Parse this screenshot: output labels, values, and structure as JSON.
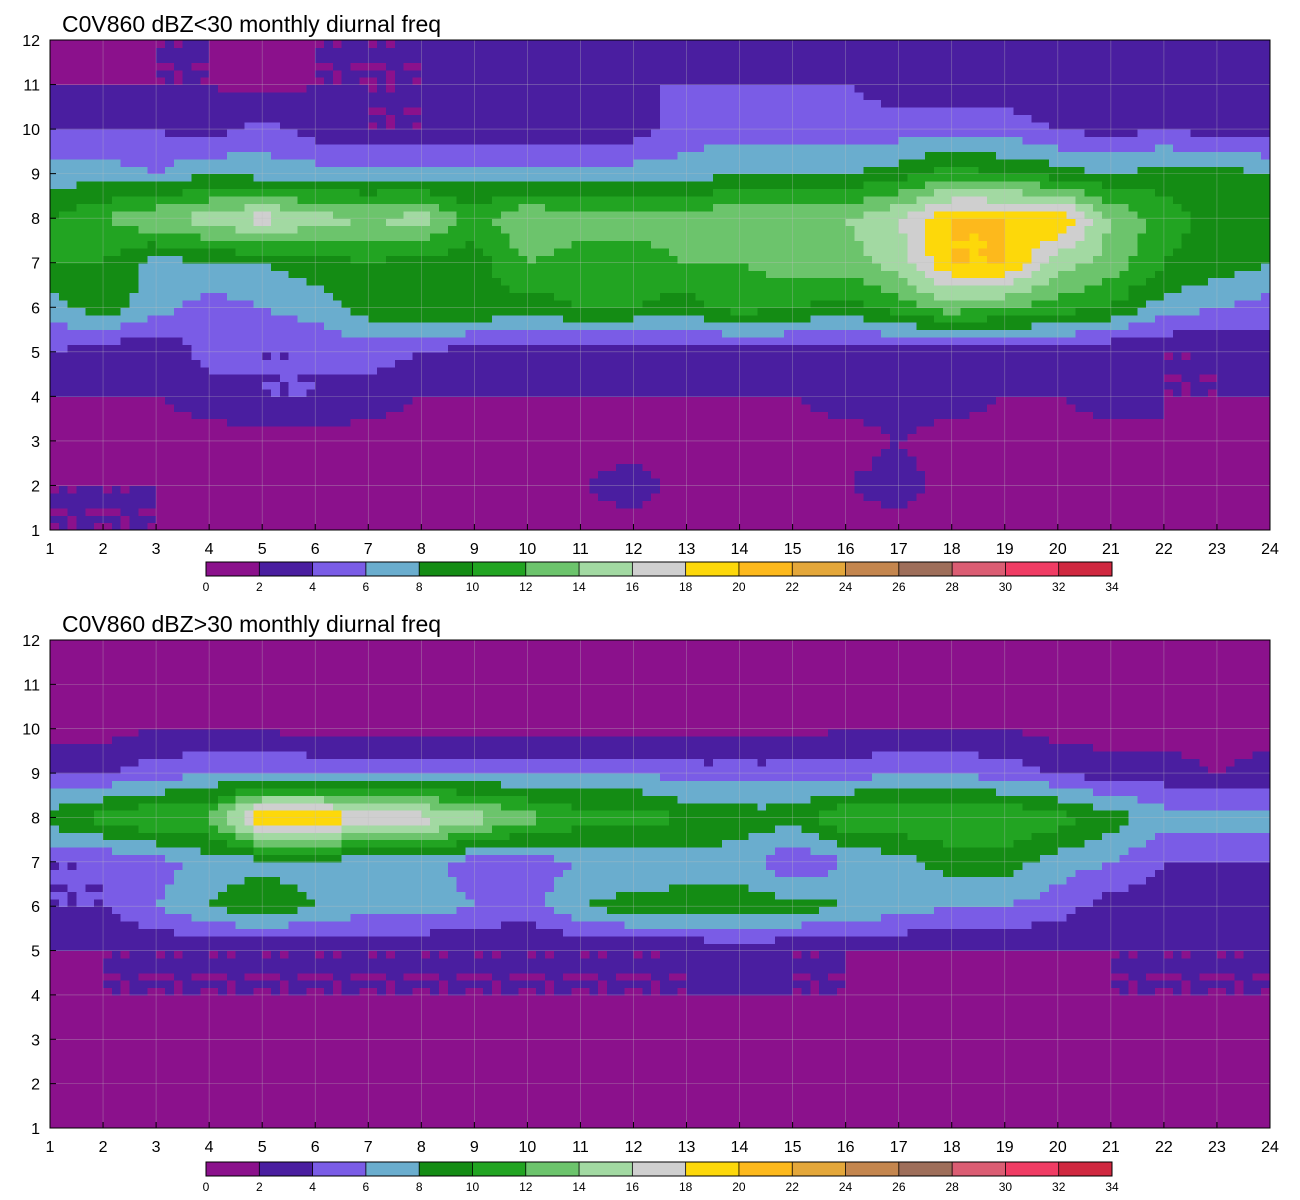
{
  "colors": {
    "levels": [
      "#8B118C",
      "#4A1EA0",
      "#7A5CE6",
      "#6AADCE",
      "#148C14",
      "#22A422",
      "#6CC46C",
      "#A2D9A2",
      "#CFCFCF",
      "#FDD80A",
      "#FDB91C",
      "#E4A73A",
      "#C4864E",
      "#9E6E5A",
      "#DB5D73",
      "#F03C64",
      "#D02840"
    ],
    "contour_line": "#F2B33C",
    "grid": "#BFBFBF"
  },
  "colorbar": {
    "ticks": [
      "0",
      "2",
      "4",
      "6",
      "8",
      "10",
      "12",
      "14",
      "16",
      "18",
      "20",
      "22",
      "24",
      "26",
      "28",
      "30",
      "32",
      "34"
    ]
  },
  "chart_data": [
    {
      "type": "heatmap",
      "title": "C0V860 dBZ<30 monthly diurnal freq",
      "x_ticks": [
        "1",
        "2",
        "3",
        "4",
        "5",
        "6",
        "7",
        "8",
        "9",
        "10",
        "11",
        "12",
        "13",
        "14",
        "15",
        "16",
        "17",
        "18",
        "19",
        "20",
        "21",
        "22",
        "23",
        "24"
      ],
      "y_ticks": [
        "1",
        "2",
        "3",
        "4",
        "5",
        "6",
        "7",
        "8",
        "9",
        "10",
        "11",
        "12"
      ],
      "xlim": [
        1,
        24
      ],
      "ylim": [
        1,
        12
      ],
      "rows_y": [
        1,
        2,
        3,
        4,
        5,
        6,
        7,
        8,
        9,
        10,
        11,
        12
      ],
      "z": [
        [
          2,
          2,
          2,
          1,
          2,
          2,
          1,
          1,
          1,
          1,
          1,
          1,
          1,
          1,
          1,
          1,
          1,
          1,
          1,
          1,
          1,
          1,
          1,
          2
        ],
        [
          2,
          2,
          2,
          2,
          1,
          1,
          1,
          1,
          1,
          1,
          2,
          3,
          1,
          1,
          1,
          2,
          3,
          1,
          1,
          1,
          1,
          1,
          1,
          1
        ],
        [
          1,
          1,
          1,
          1,
          1,
          1,
          1,
          1,
          1,
          1,
          1,
          1,
          1,
          1,
          1,
          1,
          2,
          1,
          1,
          1,
          1,
          2,
          1,
          1
        ],
        [
          2,
          2,
          2,
          3,
          4,
          4,
          3,
          2,
          2,
          2,
          2,
          2,
          2,
          2,
          2,
          3,
          3,
          3,
          2,
          2,
          3,
          2,
          2,
          2
        ],
        [
          4,
          3,
          2,
          5,
          4,
          4,
          5,
          4,
          3,
          3,
          3,
          2,
          3,
          3,
          3,
          3,
          3,
          3,
          3,
          3,
          2,
          2,
          2,
          3
        ],
        [
          7,
          9,
          7,
          5,
          6,
          7,
          9,
          10,
          10,
          9,
          10,
          10,
          9,
          11,
          10,
          9,
          11,
          13,
          12,
          11,
          10,
          7,
          6,
          5
        ],
        [
          10,
          10,
          7,
          8,
          8,
          9,
          10,
          9,
          9,
          12,
          11,
          11,
          12,
          12,
          13,
          13,
          15,
          20,
          20,
          15,
          13,
          10,
          9,
          8
        ],
        [
          10,
          12,
          14,
          15,
          17,
          15,
          14,
          15,
          11,
          14,
          13,
          13,
          13,
          14,
          14,
          14,
          16,
          20,
          20,
          20,
          14,
          11,
          9,
          8
        ],
        [
          7,
          7,
          6,
          8,
          7,
          7,
          7,
          7,
          7,
          7,
          7,
          7,
          7,
          8,
          8,
          8,
          9,
          11,
          10,
          9,
          8,
          9,
          9,
          8
        ],
        [
          4,
          4,
          4,
          3,
          5,
          3,
          2,
          2,
          3,
          2,
          2,
          3,
          5,
          5,
          5,
          5,
          5,
          5,
          5,
          4,
          3,
          4,
          3,
          3
        ],
        [
          2,
          2,
          2,
          2,
          1,
          2,
          2,
          2,
          3,
          3,
          3,
          4,
          4,
          4,
          4,
          4,
          3,
          3,
          3,
          2,
          3,
          3,
          4,
          3
        ],
        [
          1,
          1,
          2,
          2,
          2,
          2,
          2,
          2,
          2,
          2,
          2,
          2,
          2,
          2,
          2,
          2,
          2,
          2,
          2,
          2,
          2,
          2,
          2,
          2
        ]
      ]
    },
    {
      "type": "heatmap",
      "title": "C0V860 dBZ>30 monthly diurnal freq",
      "x_ticks": [
        "1",
        "2",
        "3",
        "4",
        "5",
        "6",
        "7",
        "8",
        "9",
        "10",
        "11",
        "12",
        "13",
        "14",
        "15",
        "16",
        "17",
        "18",
        "19",
        "20",
        "21",
        "22",
        "23",
        "24"
      ],
      "y_ticks": [
        "1",
        "2",
        "3",
        "4",
        "5",
        "6",
        "7",
        "8",
        "9",
        "10",
        "11",
        "12"
      ],
      "xlim": [
        1,
        24
      ],
      "ylim": [
        1,
        12
      ],
      "rows_y": [
        1,
        2,
        3,
        4,
        5,
        6,
        7,
        8,
        9,
        10,
        11,
        12
      ],
      "z": [
        [
          1,
          1,
          1,
          1,
          1,
          1,
          1,
          1,
          1,
          1,
          1,
          1,
          1,
          1,
          1,
          1,
          1,
          1,
          1,
          1,
          1,
          1,
          1,
          1
        ],
        [
          1,
          1,
          1,
          1,
          1,
          1,
          1,
          1,
          1,
          1,
          1,
          1,
          1,
          1,
          1,
          1,
          1,
          1,
          1,
          1,
          1,
          1,
          1,
          1
        ],
        [
          1,
          1,
          1,
          1,
          1,
          1,
          1,
          1,
          1,
          1,
          1,
          1,
          1,
          1,
          1,
          1,
          1,
          1,
          1,
          1,
          1,
          1,
          1,
          1
        ],
        [
          1,
          2,
          2,
          2,
          2,
          2,
          2,
          2,
          2,
          2,
          2,
          2,
          2,
          2,
          2,
          2,
          1,
          1,
          1,
          1,
          2,
          2,
          2,
          2
        ],
        [
          2,
          2,
          2,
          2,
          2,
          2,
          2,
          2,
          2,
          2,
          2,
          2,
          2,
          3,
          2,
          2,
          2,
          2,
          2,
          2,
          2,
          2,
          2,
          2
        ],
        [
          4,
          4,
          6,
          8,
          10,
          8,
          7,
          7,
          6,
          5,
          8,
          9,
          9,
          9,
          9,
          8,
          7,
          6,
          6,
          5,
          3,
          3,
          2,
          4
        ],
        [
          4,
          4,
          5,
          7,
          7,
          7,
          7,
          7,
          5,
          5,
          6,
          6,
          7,
          7,
          4,
          6,
          7,
          9,
          9,
          7,
          6,
          4,
          4,
          4
        ],
        [
          9,
          11,
          12,
          12,
          20,
          20,
          18,
          17,
          15,
          13,
          11,
          11,
          10,
          9,
          9,
          12,
          12,
          12,
          12,
          11,
          9,
          7,
          7,
          7
        ],
        [
          4,
          4,
          5,
          6,
          6,
          6,
          6,
          6,
          6,
          6,
          6,
          6,
          5,
          5,
          5,
          5,
          6,
          6,
          5,
          4,
          3,
          3,
          2,
          3
        ],
        [
          1,
          1,
          2,
          2,
          2,
          1,
          1,
          1,
          1,
          1,
          1,
          1,
          1,
          1,
          1,
          2,
          2,
          2,
          2,
          1,
          1,
          1,
          1,
          1
        ],
        [
          1,
          1,
          1,
          1,
          1,
          1,
          1,
          1,
          1,
          1,
          1,
          1,
          1,
          1,
          1,
          1,
          1,
          1,
          1,
          1,
          1,
          1,
          1,
          1
        ],
        [
          1,
          1,
          1,
          1,
          1,
          1,
          1,
          1,
          1,
          1,
          1,
          1,
          1,
          1,
          1,
          1,
          1,
          1,
          1,
          1,
          1,
          1,
          1,
          1
        ]
      ]
    }
  ]
}
